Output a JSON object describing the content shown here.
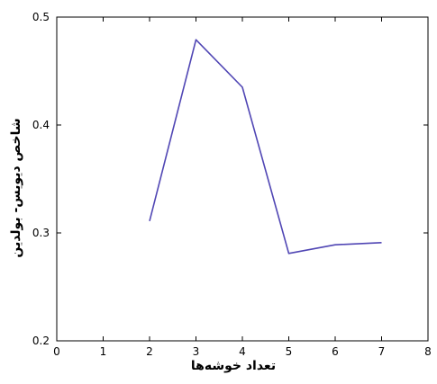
{
  "chart_data": {
    "type": "line",
    "xlabel": "تعداد خوشه‌ها",
    "ylabel": "شاخص دیویس- بولدین",
    "xlim": [
      0,
      8
    ],
    "ylim": [
      0.2,
      0.5
    ],
    "x_ticks": [
      "0",
      "1",
      "2",
      "3",
      "4",
      "5",
      "6",
      "7",
      "8"
    ],
    "y_ticks": [
      "0.2",
      "0.3",
      "0.4",
      "0.5"
    ],
    "grid": false,
    "series": [
      {
        "x": [
          2,
          3,
          4,
          5,
          6,
          7
        ],
        "y": [
          0.311,
          0.479,
          0.435,
          0.281,
          0.289,
          0.291
        ],
        "color": "#5046b4"
      }
    ]
  }
}
